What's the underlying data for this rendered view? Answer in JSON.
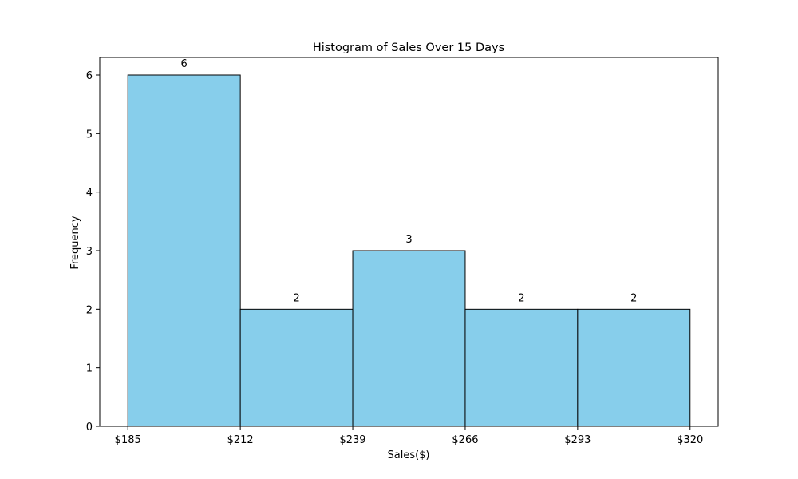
{
  "chart_data": {
    "type": "bar",
    "title": "Histogram of Sales Over 15 Days",
    "xlabel": "Sales($)",
    "ylabel": "Frequency",
    "bin_edges": [
      185,
      212,
      239,
      266,
      293,
      320
    ],
    "x_tick_labels": [
      "$185",
      "$212",
      "$239",
      "$266",
      "$293",
      "$320"
    ],
    "values": [
      6,
      2,
      3,
      2,
      2
    ],
    "data_labels": [
      "6",
      "2",
      "3",
      "2",
      "2"
    ],
    "y_ticks": [
      0,
      1,
      2,
      3,
      4,
      5,
      6
    ],
    "y_tick_labels": [
      "0",
      "1",
      "2",
      "3",
      "4",
      "5",
      "6"
    ],
    "ylim": [
      0,
      6.3
    ],
    "xlim": [
      178.25,
      326.75
    ],
    "grid": false,
    "legend": "none",
    "colors": {
      "bar_fill": "#87CEEB",
      "bar_edge": "#000000"
    }
  }
}
